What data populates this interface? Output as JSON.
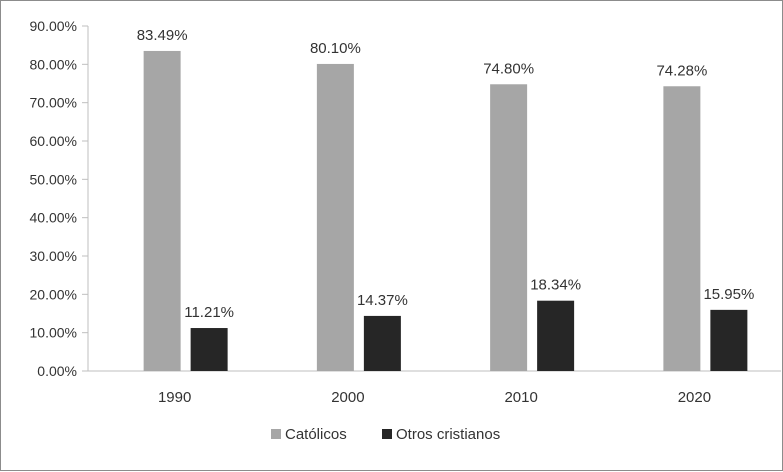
{
  "chart_data": {
    "type": "bar",
    "categories": [
      "1990",
      "2000",
      "2010",
      "2020"
    ],
    "series": [
      {
        "name": "Católicos",
        "values": [
          83.49,
          80.1,
          74.8,
          74.28
        ],
        "labels": [
          "83.49%",
          "80.10%",
          "74.80%",
          "74.28%"
        ],
        "color": "#a6a6a6"
      },
      {
        "name": "Otros cristianos",
        "values": [
          11.21,
          14.37,
          18.34,
          15.95
        ],
        "labels": [
          "11.21%",
          "14.37%",
          "18.34%",
          "15.95%"
        ],
        "color": "#262626"
      }
    ],
    "ylim": [
      0,
      90
    ],
    "yticks": [
      "0.00%",
      "10.00%",
      "20.00%",
      "30.00%",
      "40.00%",
      "50.00%",
      "60.00%",
      "70.00%",
      "80.00%",
      "90.00%"
    ],
    "grid": false,
    "legend_position": "bottom"
  }
}
